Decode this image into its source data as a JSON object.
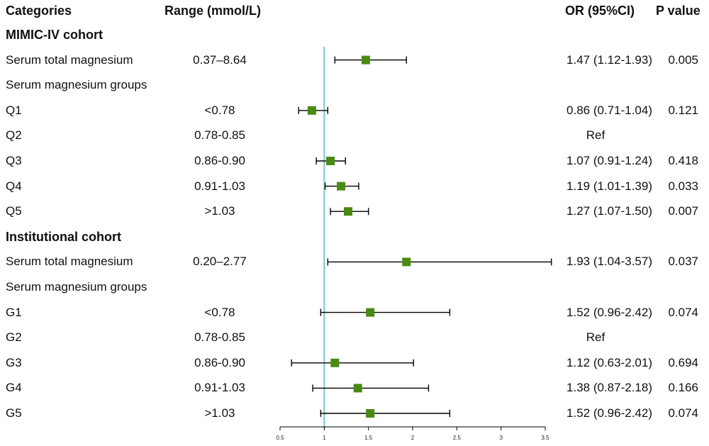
{
  "headers": {
    "categories": "Categories",
    "range": "Range (mmol/L)",
    "or": "OR (95%CI)",
    "p": "P value"
  },
  "rows": [
    {
      "label": "MIMIC-IV cohort",
      "bold": true
    },
    {
      "label": "Serum total magnesium",
      "range": "0.37–8.64",
      "or_text": "1.47 (1.12-1.93)",
      "p": "0.005"
    },
    {
      "label": "Serum magnesium groups"
    },
    {
      "label": "Q1",
      "range": "<0.78",
      "or_text": "0.86 (0.71-1.04)",
      "p": "0.121"
    },
    {
      "label": "Q2",
      "range": "0.78-0.85",
      "or_text": "Ref",
      "ref": true
    },
    {
      "label": "Q3",
      "range": "0.86-0.90",
      "or_text": "1.07 (0.91-1.24)",
      "p": "0.418"
    },
    {
      "label": "Q4",
      "range": "0.91-1.03",
      "or_text": "1.19 (1.01-1.39)",
      "p": "0.033"
    },
    {
      "label": "Q5",
      "range": ">1.03",
      "or_text": "1.27 (1.07-1.50)",
      "p": "0.007"
    },
    {
      "label": "Institutional cohort",
      "bold": true
    },
    {
      "label": "Serum total magnesium",
      "range": "0.20–2.77",
      "or_text": "1.93 (1.04-3.57)",
      "p": "0.037"
    },
    {
      "label": "Serum magnesium groups"
    },
    {
      "label": "G1",
      "range": "<0.78",
      "or_text": "1.52 (0.96-2.42)",
      "p": "0.074"
    },
    {
      "label": "G2",
      "range": "0.78-0.85",
      "or_text": "Ref",
      "ref": true
    },
    {
      "label": "G3",
      "range": "0.86-0.90",
      "or_text": "1.12 (0.63-2.01)",
      "p": "0.694"
    },
    {
      "label": "G4",
      "range": "0.91-1.03",
      "or_text": "1.38 (0.87-2.18)",
      "p": "0.166"
    },
    {
      "label": "G5",
      "range": ">1.03",
      "or_text": "1.52 (0.96-2.42)",
      "p": "0.074"
    }
  ],
  "chart_data": {
    "type": "forest",
    "xlim": [
      0.5,
      3.5
    ],
    "ticks": [
      0.5,
      1,
      1.5,
      2,
      2.5,
      3,
      3.5
    ],
    "tick_labels": [
      "0.5",
      "1",
      "1.5",
      "2",
      "2.5",
      "3",
      "3.5"
    ],
    "reference_line": 1,
    "colors": {
      "marker": "#4a8a13",
      "reference_line": "#7ec3cc",
      "whisker": "#000000"
    },
    "points": [
      {
        "row": 1,
        "or": 1.47,
        "lo": 1.12,
        "hi": 1.93
      },
      {
        "row": 3,
        "or": 0.86,
        "lo": 0.71,
        "hi": 1.04
      },
      {
        "row": 5,
        "or": 1.07,
        "lo": 0.91,
        "hi": 1.24
      },
      {
        "row": 6,
        "or": 1.19,
        "lo": 1.01,
        "hi": 1.39
      },
      {
        "row": 7,
        "or": 1.27,
        "lo": 1.07,
        "hi": 1.5
      },
      {
        "row": 9,
        "or": 1.93,
        "lo": 1.04,
        "hi": 3.57
      },
      {
        "row": 11,
        "or": 1.52,
        "lo": 0.96,
        "hi": 2.42
      },
      {
        "row": 13,
        "or": 1.12,
        "lo": 0.63,
        "hi": 2.01
      },
      {
        "row": 14,
        "or": 1.38,
        "lo": 0.87,
        "hi": 2.18
      },
      {
        "row": 15,
        "or": 1.52,
        "lo": 0.96,
        "hi": 2.42
      }
    ]
  }
}
